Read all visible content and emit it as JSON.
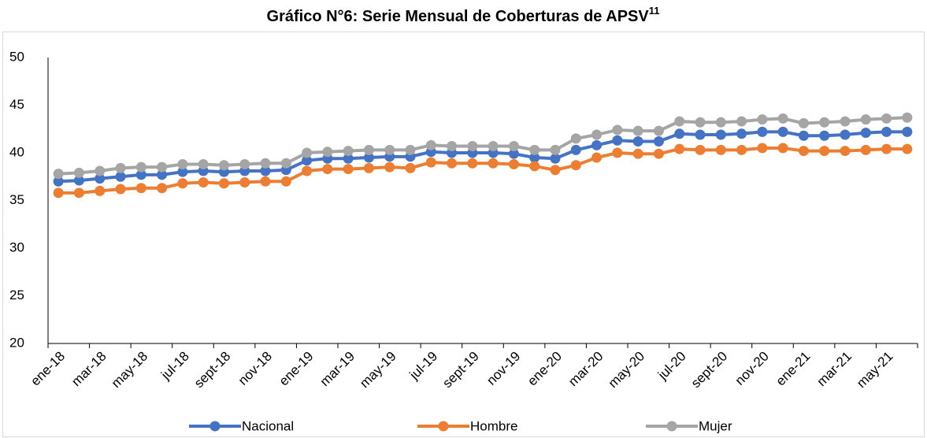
{
  "chart_data": {
    "type": "line",
    "title": "Gráfico N°6: Serie Mensual de Coberturas de APSV",
    "title_footnote": "11",
    "categories": [
      "ene-18",
      null,
      "mar-18",
      null,
      "may-18",
      null,
      "jul-18",
      null,
      "sept-18",
      null,
      "nov-18",
      null,
      "ene-19",
      null,
      "mar-19",
      null,
      "may-19",
      null,
      "jul-19",
      null,
      "sept-19",
      null,
      "nov-19",
      null,
      "ene-20",
      null,
      "mar-20",
      null,
      "may-20",
      null,
      "jul-20",
      null,
      "sept-20",
      null,
      "nov-20",
      null,
      "ene-21",
      null,
      "mar-21",
      null,
      "may-21",
      null
    ],
    "series": [
      {
        "name": "Nacional",
        "color": "#4472c4",
        "values": [
          37.0,
          37.1,
          37.3,
          37.5,
          37.7,
          37.7,
          38.0,
          38.1,
          38.0,
          38.1,
          38.1,
          38.2,
          39.2,
          39.4,
          39.4,
          39.5,
          39.6,
          39.6,
          40.1,
          40.0,
          40.0,
          40.0,
          39.9,
          39.5,
          39.4,
          40.3,
          40.8,
          41.3,
          41.2,
          41.2,
          42.0,
          41.9,
          41.9,
          42.0,
          42.2,
          42.2,
          41.8,
          41.8,
          41.9,
          42.1,
          42.2,
          42.2
        ]
      },
      {
        "name": "Hombre",
        "color": "#ed7d31",
        "values": [
          35.8,
          35.8,
          36.0,
          36.2,
          36.3,
          36.3,
          36.8,
          36.9,
          36.8,
          36.9,
          37.0,
          37.0,
          38.1,
          38.3,
          38.3,
          38.4,
          38.5,
          38.4,
          39.0,
          38.9,
          38.9,
          38.9,
          38.8,
          38.6,
          38.2,
          38.7,
          39.5,
          40.0,
          39.9,
          39.9,
          40.4,
          40.3,
          40.3,
          40.3,
          40.5,
          40.5,
          40.2,
          40.2,
          40.2,
          40.3,
          40.4,
          40.4
        ]
      },
      {
        "name": "Mujer",
        "color": "#a5a5a5",
        "values": [
          37.8,
          37.9,
          38.1,
          38.4,
          38.5,
          38.5,
          38.8,
          38.8,
          38.7,
          38.8,
          38.9,
          38.9,
          40.0,
          40.1,
          40.2,
          40.3,
          40.3,
          40.3,
          40.8,
          40.7,
          40.7,
          40.7,
          40.7,
          40.3,
          40.3,
          41.5,
          41.9,
          42.4,
          42.3,
          42.3,
          43.3,
          43.2,
          43.2,
          43.3,
          43.5,
          43.6,
          43.1,
          43.2,
          43.3,
          43.5,
          43.6,
          43.7
        ]
      }
    ],
    "ylim": [
      20,
      50
    ],
    "yticks": [
      20,
      25,
      30,
      35,
      40,
      45,
      50
    ],
    "grid": false,
    "legend": "bottom"
  }
}
